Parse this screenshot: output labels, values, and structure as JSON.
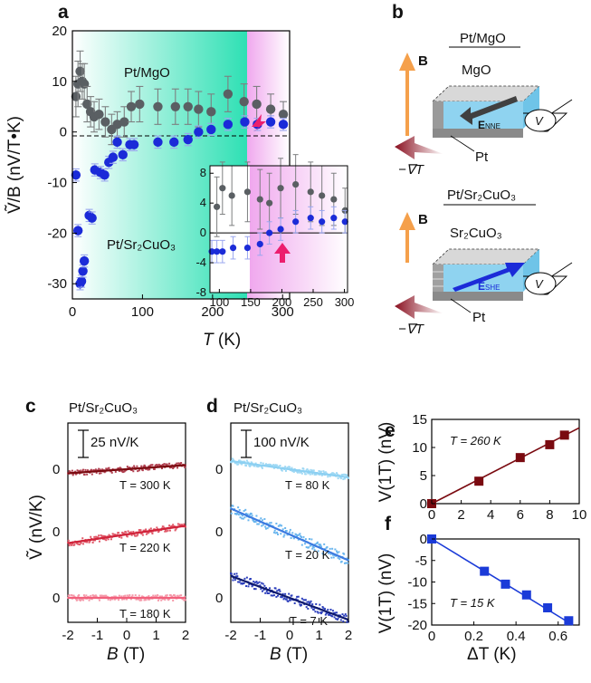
{
  "panel_labels": {
    "a": "a",
    "b": "b",
    "c": "c",
    "d": "d",
    "e": "e",
    "f": "f"
  },
  "colors": {
    "grey_marker": "#5a5f63",
    "blue_marker": "#1b2bd8",
    "err_grey": "#7d7f80",
    "err_blue": "#9aa6ef",
    "pink_arrow": "#ec1e6e",
    "fill_teal": "#2ee0b4",
    "fill_pink": "#f0b2ef",
    "dark_red": "#7a0a10",
    "mid_red": "#d0233a",
    "light_red": "#f2607c",
    "light_blue": "#8cd0f2",
    "mid_blue": "#3c7ae0",
    "dark_blue": "#0e1a6e",
    "orange": "#f5a04b",
    "maroon": "#9a1a2c"
  },
  "chart_data": [
    {
      "id": "a",
      "type": "scatter",
      "ylabel": "Ṽ/B (nV/T•K)",
      "xlabel": "T (K)",
      "xlim": [
        0,
        310
      ],
      "ylim": [
        -33,
        20
      ],
      "x_ticks": [
        "0",
        "100",
        "200",
        "300"
      ],
      "y_ticks": [
        "20",
        "10",
        "0",
        "-10",
        "-20",
        "-30"
      ],
      "label_top": "Pt/MgO",
      "label_bottom": "Pt/Sr₂CuO₃",
      "transition_T": 180,
      "series": [
        {
          "name": "Pt/MgO",
          "points": [
            [
              5,
              7,
              4
            ],
            [
              8,
              9.5,
              4.5
            ],
            [
              11,
              12,
              4
            ],
            [
              14,
              10,
              3.5
            ],
            [
              17,
              9.5,
              4
            ],
            [
              21,
              5.5,
              3.5
            ],
            [
              26,
              4,
              3
            ],
            [
              31,
              3,
              3
            ],
            [
              38,
              3.5,
              3
            ],
            [
              47,
              2,
              3
            ],
            [
              56,
              0.5,
              3
            ],
            [
              64,
              1.5,
              2.5
            ],
            [
              74,
              2,
              3
            ],
            [
              84,
              5,
              3
            ],
            [
              96,
              5.5,
              3.5
            ],
            [
              122,
              5,
              3.5
            ],
            [
              147,
              5,
              3.5
            ],
            [
              165,
              5,
              3.5
            ],
            [
              180,
              4.5,
              3.5
            ],
            [
              198,
              4,
              3.5
            ],
            [
              222,
              7.5,
              3.5
            ],
            [
              245,
              6,
              3.5
            ],
            [
              263,
              5.5,
              3.5
            ],
            [
              283,
              4.5,
              3
            ],
            [
              301,
              3.5,
              2.5
            ]
          ]
        },
        {
          "name": "Pt/Sr2CuO3",
          "points": [
            [
              5,
              -8.5,
              1.2
            ],
            [
              8,
              -19.5,
              1.2
            ],
            [
              11,
              -30,
              1.2
            ],
            [
              13,
              -29.5,
              1.2
            ],
            [
              15,
              -27.5,
              1.2
            ],
            [
              17,
              -25.5,
              1.2
            ],
            [
              24,
              -16.5,
              1.2
            ],
            [
              28,
              -17,
              1.2
            ],
            [
              32,
              -7.5,
              1.2
            ],
            [
              40,
              -8,
              1.2
            ],
            [
              46,
              -8.5,
              1.2
            ],
            [
              52,
              -6,
              1.2
            ],
            [
              58,
              -5,
              1.2
            ],
            [
              64,
              -2,
              1.2
            ],
            [
              72,
              -4.5,
              1.2
            ],
            [
              82,
              -2.5,
              1.2
            ],
            [
              88,
              -2.5,
              1.2
            ],
            [
              122,
              -2,
              1.2
            ],
            [
              145,
              -2,
              1.2
            ],
            [
              165,
              -1.5,
              1.2
            ],
            [
              180,
              0,
              1.2
            ],
            [
              198,
              0.5,
              1.2
            ],
            [
              222,
              1.5,
              1.2
            ],
            [
              246,
              2,
              1.2
            ],
            [
              264,
              1.5,
              1.2
            ],
            [
              283,
              2,
              1.2
            ],
            [
              301,
              1.5,
              1.2
            ]
          ]
        }
      ],
      "inset": {
        "xlim": [
          85,
          305
        ],
        "ylim": [
          -8,
          9
        ],
        "x_ticks": [
          "100",
          "150",
          "200",
          "250",
          "300"
        ],
        "y_ticks": [
          "8",
          "4",
          "0",
          "-4",
          "-8"
        ],
        "series": [
          {
            "name": "Pt/MgO",
            "points": [
              [
                96,
                3.5,
                4
              ],
              [
                105,
                6,
                3.5
              ],
              [
                120,
                5,
                4
              ],
              [
                145,
                5.5,
                4
              ],
              [
                165,
                4.5,
                4
              ],
              [
                180,
                4,
                4
              ],
              [
                198,
                6,
                4
              ],
              [
                222,
                6.5,
                4
              ],
              [
                246,
                5.5,
                4
              ],
              [
                264,
                5,
                4
              ],
              [
                283,
                4.5,
                3.5
              ],
              [
                301,
                3,
                3
              ]
            ]
          },
          {
            "name": "Pt/Sr2CuO3",
            "points": [
              [
                88,
                -2.5,
                1.5
              ],
              [
                96,
                -2.5,
                1.5
              ],
              [
                105,
                -2.5,
                1.5
              ],
              [
                122,
                -2,
                1.5
              ],
              [
                145,
                -2,
                1.5
              ],
              [
                165,
                -1.5,
                1.5
              ],
              [
                180,
                0,
                1.5
              ],
              [
                198,
                0.5,
                1.5
              ],
              [
                222,
                1.5,
                1.5
              ],
              [
                246,
                2,
                1.5
              ],
              [
                264,
                1.5,
                1.5
              ],
              [
                283,
                2,
                1.5
              ],
              [
                301,
                1.5,
                1.5
              ]
            ]
          }
        ]
      }
    },
    {
      "id": "c",
      "type": "scatter",
      "title": "Pt/Sr₂CuO₃",
      "xlabel": "B (T)",
      "ylabel": "Ṽ (nV/K)",
      "xlim": [
        -2,
        2
      ],
      "x_ticks": [
        "-2",
        "-1",
        "0",
        "1",
        "2"
      ],
      "scale_bar": "25 nV/K",
      "series": [
        {
          "name": "T = 300 K",
          "slope_nV_per_T": 2.5
        },
        {
          "name": "T = 220 K",
          "slope_nV_per_T": 4.0
        },
        {
          "name": "T = 180 K",
          "slope_nV_per_T": 0.0
        }
      ]
    },
    {
      "id": "d",
      "type": "scatter",
      "title": "Pt/Sr₂CuO₃",
      "xlabel": "B (T)",
      "xlim": [
        -2,
        2
      ],
      "x_ticks": [
        "-2",
        "-1",
        "0",
        "1",
        "2"
      ],
      "scale_bar": "100 nV/K",
      "series": [
        {
          "name": "T = 80 K",
          "slope_nV_per_T": -5.0
        },
        {
          "name": "T = 20 K",
          "slope_nV_per_T": -22.0
        },
        {
          "name": "T = 7 K",
          "slope_nV_per_T": -22.0
        }
      ]
    },
    {
      "id": "e",
      "type": "scatter",
      "xlabel": "",
      "ylabel": "V(1T) (nV)",
      "xlim": [
        0,
        10
      ],
      "ylim": [
        0,
        15
      ],
      "x_ticks": [
        "0",
        "2",
        "4",
        "6",
        "8",
        "10"
      ],
      "y_ticks": [
        "15",
        "10",
        "5",
        "0"
      ],
      "annotation": "T = 260 K",
      "points": [
        [
          0,
          0
        ],
        [
          3.2,
          4
        ],
        [
          6,
          8.2
        ],
        [
          8,
          10.5
        ],
        [
          9,
          12.2
        ]
      ],
      "fit": [
        [
          0,
          0
        ],
        [
          10,
          13.5
        ]
      ]
    },
    {
      "id": "f",
      "type": "scatter",
      "xlabel": "ΔT (K)",
      "ylabel": "V(1T) (nV)",
      "xlim": [
        0,
        0.7
      ],
      "ylim": [
        -20,
        0
      ],
      "x_ticks": [
        "0",
        "0.2",
        "0.4",
        "0.6"
      ],
      "y_ticks": [
        "0",
        "-5",
        "-10",
        "-15",
        "-20"
      ],
      "annotation": "T = 15 K",
      "points": [
        [
          0,
          0
        ],
        [
          0.25,
          -7.5
        ],
        [
          0.35,
          -10.5
        ],
        [
          0.45,
          -13
        ],
        [
          0.55,
          -16
        ],
        [
          0.65,
          -19
        ]
      ],
      "fit": [
        [
          0,
          0
        ],
        [
          0.67,
          -20
        ]
      ]
    }
  ],
  "schematic": {
    "top_title": "Pt/MgO",
    "top_layer": "MgO",
    "top_field": "E",
    "top_field_sub": "NNE",
    "bottom_title": "Pt/Sr₂CuO₃",
    "bottom_layer": "Sr₂CuO₃",
    "bottom_field": "E",
    "bottom_field_sub": "SHE",
    "pt_label": "Pt",
    "b_label": "B",
    "grad_label": "−∇T",
    "voltmeter": "V"
  },
  "c_traces": {
    "t300": "T = 300 K",
    "t220": "T = 220 K",
    "t180": "T = 180 K"
  },
  "d_traces": {
    "t80": "T = 80 K",
    "t20": "T = 20 K",
    "t7": "T = 7 K"
  },
  "zero_label": "0",
  "axis_T": "T",
  "axis_T_unit": " (K)",
  "axis_B": "B",
  "axis_B_unit": " (T)",
  "axis_dT": "ΔT (K)",
  "axis_V1T": "V(1T) (nV)",
  "axis_ylabel_a": "Ṽ/B (nV/T•K)",
  "axis_ylabel_c": "Ṽ (nV/K)"
}
